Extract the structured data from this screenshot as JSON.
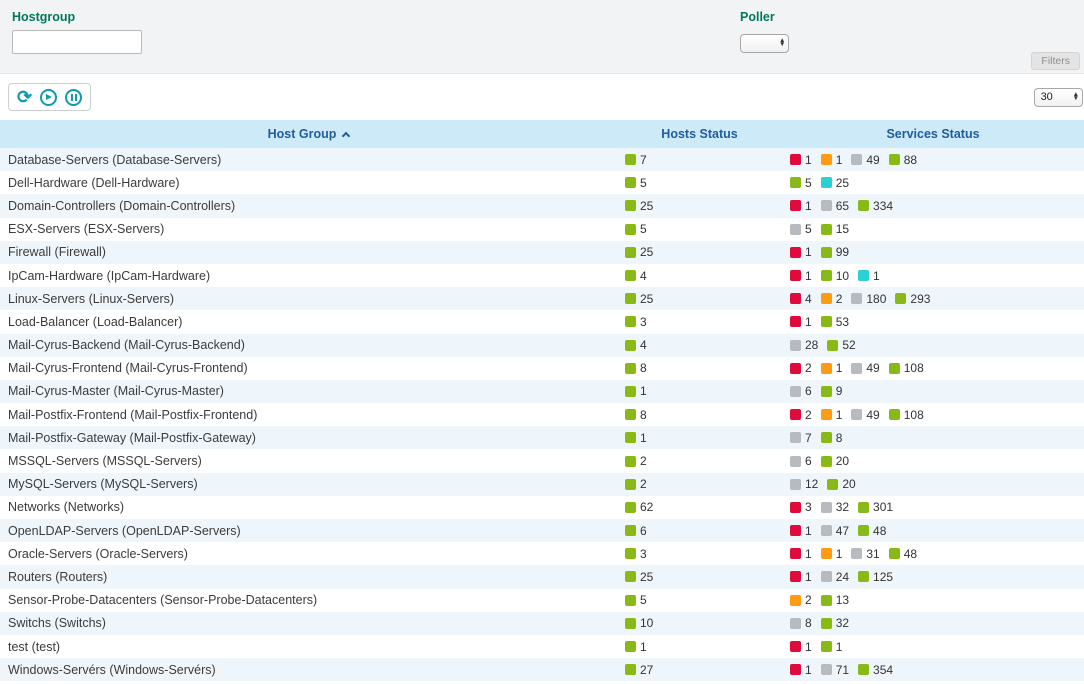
{
  "filters": {
    "hostgroup_label": "Hostgroup",
    "hostgroup_value": "",
    "poller_label": "Poller",
    "poller_value": "",
    "filters_button": "Filters"
  },
  "toolbar": {
    "page_size": "30",
    "icons": {
      "refresh": "⟳",
      "play": "▶",
      "pause": "⏸"
    }
  },
  "colors": {
    "ok": "#88B917",
    "critical": "#E00B3C",
    "warning": "#FF9A13",
    "unknown": "#B7BABE",
    "pending": "#2AD1D4"
  },
  "table": {
    "columns": [
      {
        "label": "Host Group",
        "sort": "asc"
      },
      {
        "label": "Hosts Status"
      },
      {
        "label": "Services Status"
      }
    ],
    "rows": [
      {
        "name": "Database-Servers (Database-Servers)",
        "hosts": [
          [
            "ok",
            "7"
          ]
        ],
        "services": [
          [
            "critical",
            "1"
          ],
          [
            "warning",
            "1"
          ],
          [
            "unknown",
            "49"
          ],
          [
            "ok",
            "88"
          ]
        ]
      },
      {
        "name": "Dell-Hardware (Dell-Hardware)",
        "hosts": [
          [
            "ok",
            "5"
          ]
        ],
        "services": [
          [
            "ok",
            "5"
          ],
          [
            "pending",
            "25"
          ]
        ]
      },
      {
        "name": "Domain-Controllers (Domain-Controllers)",
        "hosts": [
          [
            "ok",
            "25"
          ]
        ],
        "services": [
          [
            "critical",
            "1"
          ],
          [
            "unknown",
            "65"
          ],
          [
            "ok",
            "334"
          ]
        ]
      },
      {
        "name": "ESX-Servers (ESX-Servers)",
        "hosts": [
          [
            "ok",
            "5"
          ]
        ],
        "services": [
          [
            "unknown",
            "5"
          ],
          [
            "ok",
            "15"
          ]
        ]
      },
      {
        "name": "Firewall (Firewall)",
        "hosts": [
          [
            "ok",
            "25"
          ]
        ],
        "services": [
          [
            "critical",
            "1"
          ],
          [
            "ok",
            "99"
          ]
        ]
      },
      {
        "name": "IpCam-Hardware (IpCam-Hardware)",
        "hosts": [
          [
            "ok",
            "4"
          ]
        ],
        "services": [
          [
            "critical",
            "1"
          ],
          [
            "ok",
            "10"
          ],
          [
            "pending",
            "1"
          ]
        ]
      },
      {
        "name": "Linux-Servers (Linux-Servers)",
        "hosts": [
          [
            "ok",
            "25"
          ]
        ],
        "services": [
          [
            "critical",
            "4"
          ],
          [
            "warning",
            "2"
          ],
          [
            "unknown",
            "180"
          ],
          [
            "ok",
            "293"
          ]
        ]
      },
      {
        "name": "Load-Balancer (Load-Balancer)",
        "hosts": [
          [
            "ok",
            "3"
          ]
        ],
        "services": [
          [
            "critical",
            "1"
          ],
          [
            "ok",
            "53"
          ]
        ]
      },
      {
        "name": "Mail-Cyrus-Backend (Mail-Cyrus-Backend)",
        "hosts": [
          [
            "ok",
            "4"
          ]
        ],
        "services": [
          [
            "unknown",
            "28"
          ],
          [
            "ok",
            "52"
          ]
        ]
      },
      {
        "name": "Mail-Cyrus-Frontend (Mail-Cyrus-Frontend)",
        "hosts": [
          [
            "ok",
            "8"
          ]
        ],
        "services": [
          [
            "critical",
            "2"
          ],
          [
            "warning",
            "1"
          ],
          [
            "unknown",
            "49"
          ],
          [
            "ok",
            "108"
          ]
        ]
      },
      {
        "name": "Mail-Cyrus-Master (Mail-Cyrus-Master)",
        "hosts": [
          [
            "ok",
            "1"
          ]
        ],
        "services": [
          [
            "unknown",
            "6"
          ],
          [
            "ok",
            "9"
          ]
        ]
      },
      {
        "name": "Mail-Postfix-Frontend (Mail-Postfix-Frontend)",
        "hosts": [
          [
            "ok",
            "8"
          ]
        ],
        "services": [
          [
            "critical",
            "2"
          ],
          [
            "warning",
            "1"
          ],
          [
            "unknown",
            "49"
          ],
          [
            "ok",
            "108"
          ]
        ]
      },
      {
        "name": "Mail-Postfix-Gateway (Mail-Postfix-Gateway)",
        "hosts": [
          [
            "ok",
            "1"
          ]
        ],
        "services": [
          [
            "unknown",
            "7"
          ],
          [
            "ok",
            "8"
          ]
        ]
      },
      {
        "name": "MSSQL-Servers (MSSQL-Servers)",
        "hosts": [
          [
            "ok",
            "2"
          ]
        ],
        "services": [
          [
            "unknown",
            "6"
          ],
          [
            "ok",
            "20"
          ]
        ]
      },
      {
        "name": "MySQL-Servers (MySQL-Servers)",
        "hosts": [
          [
            "ok",
            "2"
          ]
        ],
        "services": [
          [
            "unknown",
            "12"
          ],
          [
            "ok",
            "20"
          ]
        ]
      },
      {
        "name": "Networks (Networks)",
        "hosts": [
          [
            "ok",
            "62"
          ]
        ],
        "services": [
          [
            "critical",
            "3"
          ],
          [
            "unknown",
            "32"
          ],
          [
            "ok",
            "301"
          ]
        ]
      },
      {
        "name": "OpenLDAP-Servers (OpenLDAP-Servers)",
        "hosts": [
          [
            "ok",
            "6"
          ]
        ],
        "services": [
          [
            "critical",
            "1"
          ],
          [
            "unknown",
            "47"
          ],
          [
            "ok",
            "48"
          ]
        ]
      },
      {
        "name": "Oracle-Servers (Oracle-Servers)",
        "hosts": [
          [
            "ok",
            "3"
          ]
        ],
        "services": [
          [
            "critical",
            "1"
          ],
          [
            "warning",
            "1"
          ],
          [
            "unknown",
            "31"
          ],
          [
            "ok",
            "48"
          ]
        ]
      },
      {
        "name": "Routers (Routers)",
        "hosts": [
          [
            "ok",
            "25"
          ]
        ],
        "services": [
          [
            "critical",
            "1"
          ],
          [
            "unknown",
            "24"
          ],
          [
            "ok",
            "125"
          ]
        ]
      },
      {
        "name": "Sensor-Probe-Datacenters (Sensor-Probe-Datacenters)",
        "hosts": [
          [
            "ok",
            "5"
          ]
        ],
        "services": [
          [
            "warning",
            "2"
          ],
          [
            "ok",
            "13"
          ]
        ]
      },
      {
        "name": "Switchs (Switchs)",
        "hosts": [
          [
            "ok",
            "10"
          ]
        ],
        "services": [
          [
            "unknown",
            "8"
          ],
          [
            "ok",
            "32"
          ]
        ]
      },
      {
        "name": "test (test)",
        "hosts": [
          [
            "ok",
            "1"
          ]
        ],
        "services": [
          [
            "critical",
            "1"
          ],
          [
            "ok",
            "1"
          ]
        ]
      },
      {
        "name": "Windows-Servérs (Windows-Servérs)",
        "hosts": [
          [
            "ok",
            "27"
          ]
        ],
        "services": [
          [
            "critical",
            "1"
          ],
          [
            "unknown",
            "71"
          ],
          [
            "ok",
            "354"
          ]
        ]
      }
    ]
  }
}
